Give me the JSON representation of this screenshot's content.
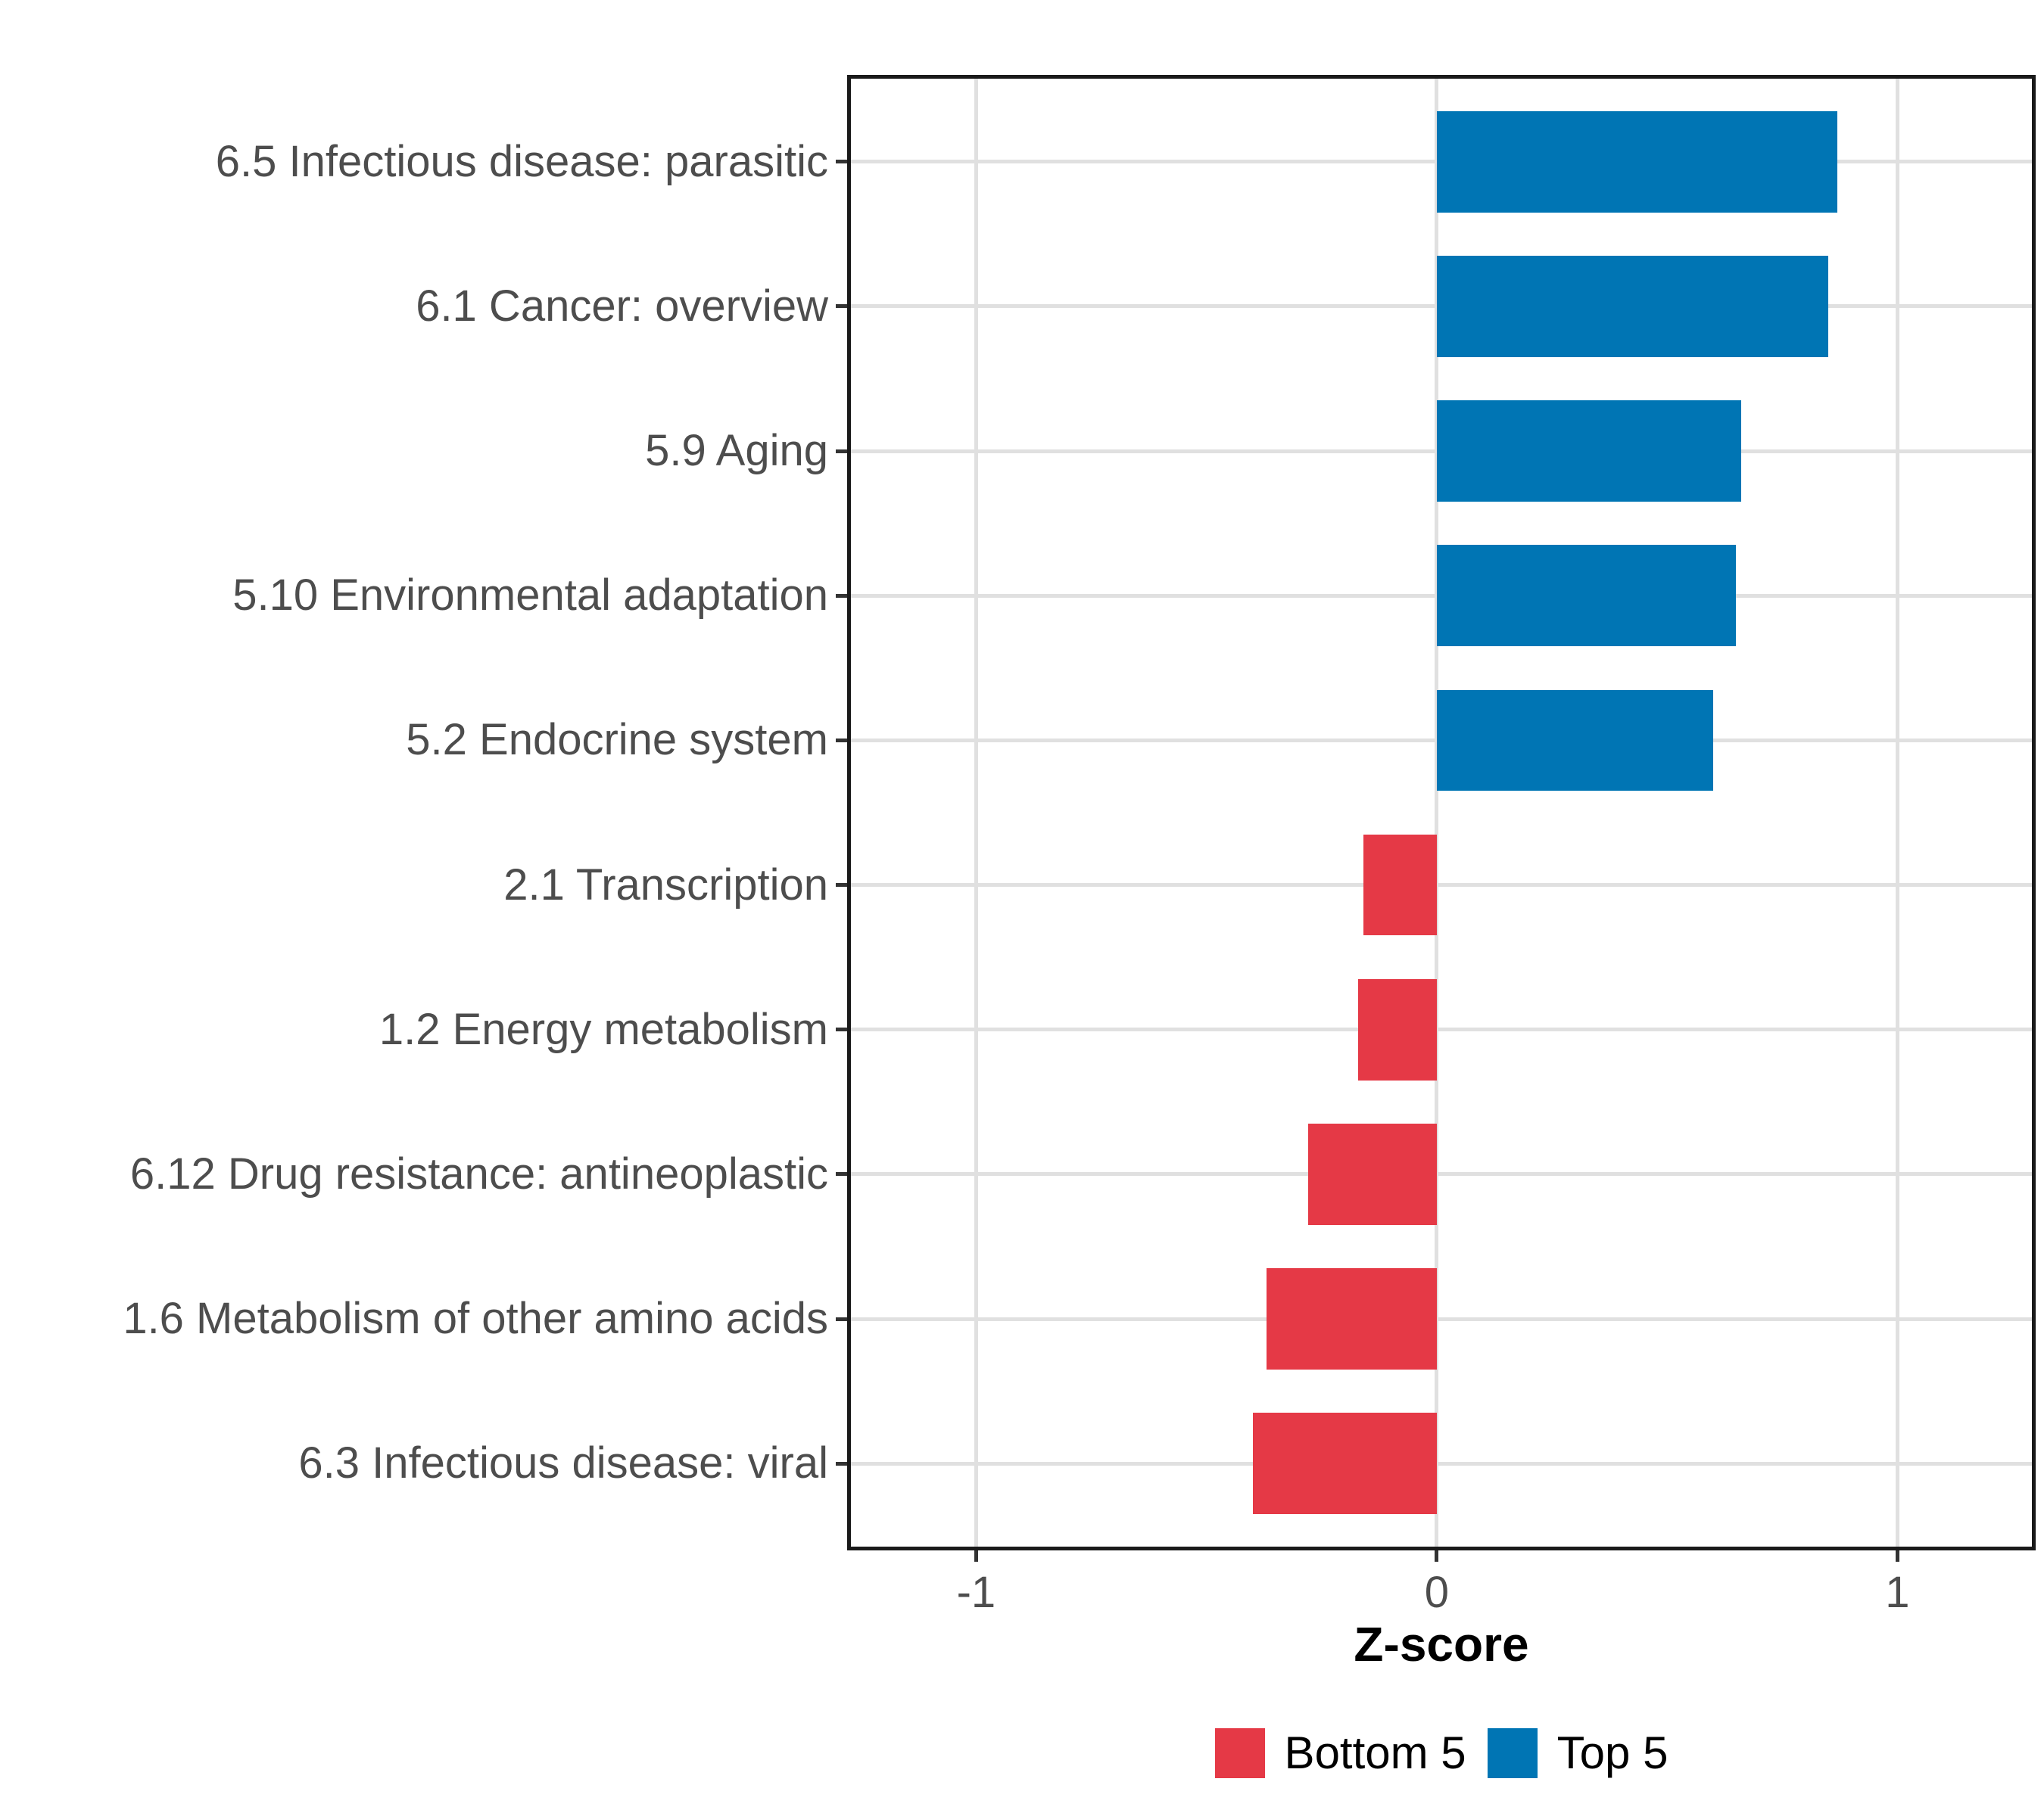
{
  "chart_data": {
    "type": "bar",
    "orientation": "horizontal",
    "title": "",
    "xlabel": "Z-score",
    "ylabel": "",
    "categories": [
      "6.5 Infectious disease: parasitic",
      "6.1 Cancer: overview",
      "5.9 Aging",
      "5.10 Environmental adaptation",
      "5.2 Endocrine system",
      "2.1 Transcription",
      "1.2 Energy metabolism",
      "6.12 Drug resistance: antineoplastic",
      "1.6 Metabolism of other amino acids",
      "6.3 Infectious disease: viral"
    ],
    "values": [
      0.87,
      0.85,
      0.66,
      0.65,
      0.6,
      -0.16,
      -0.17,
      -0.28,
      -0.37,
      -0.4
    ],
    "groups": [
      "Top 5",
      "Top 5",
      "Top 5",
      "Top 5",
      "Top 5",
      "Bottom 5",
      "Bottom 5",
      "Bottom 5",
      "Bottom 5",
      "Bottom 5"
    ],
    "x_ticks": [
      "-1",
      "0",
      "1"
    ],
    "x_tick_values": [
      -1,
      0,
      1
    ],
    "xlim": [
      -1.28,
      1.3
    ],
    "grid": "major-only",
    "legend_position": "bottom",
    "legend": [
      {
        "label": "Bottom 5",
        "color": "#E53946"
      },
      {
        "label": "Top 5",
        "color": "#0075B4"
      }
    ],
    "colors": {
      "bottom5": "#E53946",
      "top5": "#0075B4",
      "gridline": "#E0E0E0",
      "axis_text": "#4D4D4D"
    }
  }
}
